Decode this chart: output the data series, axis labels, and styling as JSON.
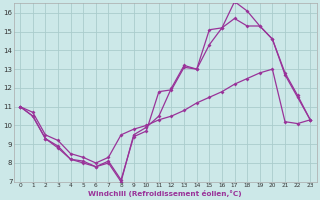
{
  "xlabel": "Windchill (Refroidissement éolien,°C)",
  "bg_color": "#cce8e8",
  "grid_color": "#aacccc",
  "line_color": "#993399",
  "xlim": [
    -0.5,
    23.5
  ],
  "ylim": [
    7,
    16.5
  ],
  "xticks": [
    0,
    1,
    2,
    3,
    4,
    5,
    6,
    7,
    8,
    9,
    10,
    11,
    12,
    13,
    14,
    15,
    16,
    17,
    18,
    19,
    20,
    21,
    22,
    23
  ],
  "yticks": [
    7,
    8,
    9,
    10,
    11,
    12,
    13,
    14,
    15,
    16
  ],
  "line1_x": [
    0,
    1,
    2,
    3,
    4,
    5,
    6,
    7,
    8,
    9,
    10,
    11,
    12,
    13,
    14,
    15,
    16,
    17,
    18,
    19,
    20,
    21,
    22,
    23
  ],
  "line1_y": [
    11.0,
    10.7,
    9.5,
    9.2,
    8.5,
    8.3,
    8.0,
    8.3,
    9.5,
    9.8,
    10.0,
    10.3,
    10.5,
    10.8,
    11.2,
    11.5,
    11.8,
    12.2,
    12.5,
    12.8,
    13.0,
    10.2,
    10.1,
    10.3
  ],
  "line2_x": [
    0,
    1,
    2,
    3,
    4,
    5,
    6,
    7,
    8,
    9,
    10,
    11,
    12,
    13,
    14,
    15,
    16,
    17,
    18,
    19,
    20,
    21,
    22,
    23
  ],
  "line2_y": [
    11.0,
    10.5,
    9.3,
    8.9,
    8.2,
    8.0,
    7.8,
    8.1,
    7.1,
    9.4,
    9.7,
    11.8,
    11.9,
    13.1,
    13.0,
    15.1,
    15.2,
    16.6,
    16.1,
    15.3,
    14.6,
    12.7,
    11.5,
    10.3
  ],
  "line3_x": [
    0,
    1,
    2,
    3,
    4,
    5,
    6,
    7,
    8,
    9,
    10,
    11,
    12,
    13,
    14,
    15,
    16,
    17,
    18,
    19,
    20,
    21,
    22,
    23
  ],
  "line3_y": [
    11.0,
    10.5,
    9.3,
    8.8,
    8.2,
    8.1,
    7.8,
    8.0,
    7.0,
    9.5,
    9.9,
    10.5,
    12.0,
    13.2,
    13.0,
    14.3,
    15.2,
    15.7,
    15.3,
    15.3,
    14.6,
    12.8,
    11.6,
    10.3
  ]
}
